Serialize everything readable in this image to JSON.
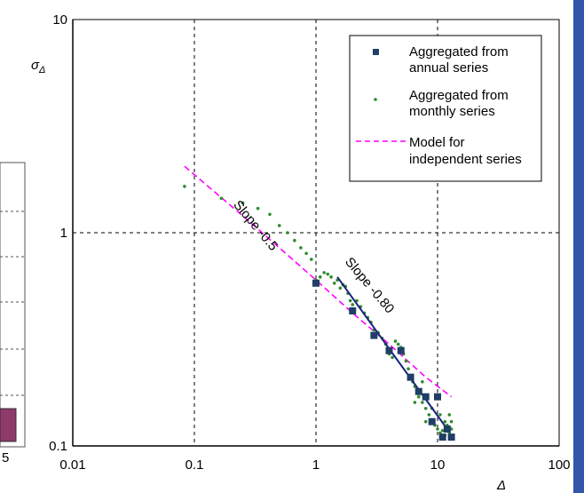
{
  "chart_data": {
    "type": "scatter",
    "x_scale": "log",
    "y_scale": "log",
    "xlim": [
      0.01,
      100
    ],
    "ylim": [
      0.1,
      10
    ],
    "x_ticks": [
      "0.01",
      "0.1",
      "1",
      "10",
      "100"
    ],
    "y_ticks": [
      "0.1",
      "1",
      "10"
    ],
    "xlabel": "Δ",
    "ylabel": "σΔ",
    "grid": true,
    "legend_position": "top-right",
    "colors": {
      "annual": "#1f3f66",
      "monthly": "#2e8b2e",
      "model": "#ff00ff",
      "fit": "#1a237e",
      "frame": "#3355aa",
      "left_box": "#8e3a6a"
    },
    "legend": {
      "annual": "Aggregated from annual series",
      "annual_lines": [
        "Aggregated from",
        "annual series"
      ],
      "monthly": "Aggregated from monthly series",
      "monthly_lines": [
        "Aggregated from",
        "monthly series"
      ],
      "model": "Model for independent series",
      "model_lines": [
        "Model for",
        "independent series"
      ]
    },
    "series": [
      {
        "name": "Aggregated from annual series",
        "marker": "square",
        "points": [
          [
            1,
            0.58
          ],
          [
            2,
            0.43
          ],
          [
            3,
            0.33
          ],
          [
            4,
            0.28
          ],
          [
            5,
            0.28
          ],
          [
            6,
            0.21
          ],
          [
            7,
            0.18
          ],
          [
            8,
            0.17
          ],
          [
            9,
            0.13
          ],
          [
            10,
            0.17
          ],
          [
            11,
            0.11
          ],
          [
            12,
            0.12
          ],
          [
            13,
            0.11
          ]
        ]
      },
      {
        "name": "Aggregated from monthly series",
        "marker": "dot",
        "points": [
          [
            0.083,
            1.65
          ],
          [
            0.167,
            1.45
          ],
          [
            0.25,
            1.38
          ],
          [
            0.333,
            1.3
          ],
          [
            0.417,
            1.22
          ],
          [
            0.5,
            1.08
          ],
          [
            0.583,
            1.0
          ],
          [
            0.667,
            0.92
          ],
          [
            0.75,
            0.85
          ],
          [
            0.833,
            0.8
          ],
          [
            0.917,
            0.75
          ],
          [
            1.0,
            0.6
          ],
          [
            1.083,
            0.62
          ],
          [
            1.167,
            0.65
          ],
          [
            1.25,
            0.64
          ],
          [
            1.333,
            0.62
          ],
          [
            1.417,
            0.58
          ],
          [
            1.5,
            0.6
          ],
          [
            1.583,
            0.55
          ],
          [
            1.667,
            0.57
          ],
          [
            1.75,
            0.56
          ],
          [
            1.833,
            0.52
          ],
          [
            1.917,
            0.48
          ],
          [
            2.0,
            0.46
          ],
          [
            2.167,
            0.48
          ],
          [
            2.333,
            0.45
          ],
          [
            2.5,
            0.42
          ],
          [
            2.667,
            0.4
          ],
          [
            2.833,
            0.38
          ],
          [
            3.0,
            0.35
          ],
          [
            3.25,
            0.34
          ],
          [
            3.5,
            0.32
          ],
          [
            3.75,
            0.3
          ],
          [
            4.0,
            0.27
          ],
          [
            4.25,
            0.26
          ],
          [
            4.5,
            0.31
          ],
          [
            4.75,
            0.3
          ],
          [
            5.0,
            0.29
          ],
          [
            5.25,
            0.27
          ],
          [
            5.5,
            0.25
          ],
          [
            5.75,
            0.23
          ],
          [
            6.0,
            0.21
          ],
          [
            6.25,
            0.2
          ],
          [
            6.5,
            0.19
          ],
          [
            6.75,
            0.18
          ],
          [
            7.0,
            0.17
          ],
          [
            7.5,
            0.16
          ],
          [
            8.0,
            0.15
          ],
          [
            8.5,
            0.14
          ],
          [
            9.0,
            0.13
          ],
          [
            9.5,
            0.125
          ],
          [
            10.0,
            0.12
          ],
          [
            10.5,
            0.115
          ],
          [
            11.0,
            0.118
          ],
          [
            11.5,
            0.112
          ],
          [
            12.0,
            0.125
          ],
          [
            12.5,
            0.115
          ],
          [
            13.0,
            0.13
          ],
          [
            6.5,
            0.16
          ],
          [
            8.0,
            0.13
          ],
          [
            9.0,
            0.15
          ],
          [
            10.5,
            0.14
          ],
          [
            7.5,
            0.2
          ],
          [
            11.5,
            0.13
          ],
          [
            12.5,
            0.14
          ],
          [
            13.0,
            0.12
          ]
        ]
      },
      {
        "name": "Model for independent series",
        "line": "dashed",
        "points": [
          [
            0.083,
            2.05
          ],
          [
            0.25,
            1.2
          ],
          [
            0.5,
            0.85
          ],
          [
            1.0,
            0.6
          ],
          [
            2.0,
            0.42
          ],
          [
            4.0,
            0.3
          ],
          [
            8.0,
            0.21
          ],
          [
            13.0,
            0.17
          ]
        ]
      },
      {
        "name": "Slope -0.80",
        "line": "solid",
        "points": [
          [
            1.5,
            0.62
          ],
          [
            12.0,
            0.12
          ]
        ]
      }
    ],
    "annotations": [
      {
        "text": "Slope -0.5",
        "x": 0.3,
        "y": 1.05,
        "angle": 50
      },
      {
        "text": "Slope -0.80",
        "x": 2.6,
        "y": 0.55,
        "angle": 50
      }
    ],
    "side_labels": [
      "5"
    ]
  }
}
